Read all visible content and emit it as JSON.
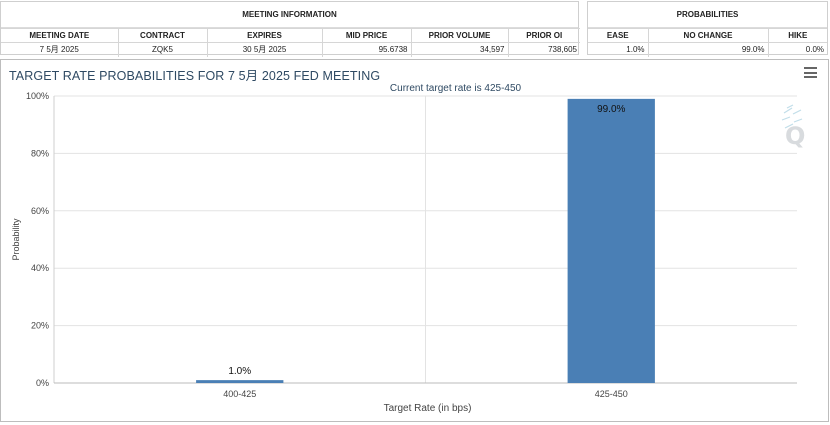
{
  "meeting_info": {
    "title": "MEETING INFORMATION",
    "headers": [
      "MEETING DATE",
      "CONTRACT",
      "EXPIRES",
      "MID PRICE",
      "PRIOR VOLUME",
      "PRIOR OI"
    ],
    "row": [
      "7 5月 2025",
      "ZQK5",
      "30 5月 2025",
      "95.6738",
      "34,597",
      "738,605"
    ]
  },
  "probabilities": {
    "title": "PROBABILITIES",
    "headers": [
      "EASE",
      "NO CHANGE",
      "HIKE"
    ],
    "row": [
      "1.0%",
      "99.0%",
      "0.0%"
    ]
  },
  "chart_panel": {
    "title": "TARGET RATE PROBABILITIES FOR 7 5月 2025 FED MEETING",
    "menu_icon": "hamburger-menu-icon",
    "watermark_icon": "q-logo-watermark"
  },
  "chart_data": {
    "type": "bar",
    "title": "TARGET RATE PROBABILITIES FOR 7 5月 2025 FED MEETING",
    "subtitle": "Current target rate is 425-450",
    "categories": [
      "400-425",
      "425-450"
    ],
    "values": [
      1.0,
      99.0
    ],
    "data_labels": [
      "1.0%",
      "99.0%"
    ],
    "xlabel": "Target Rate (in bps)",
    "ylabel": "Probability",
    "ylim": [
      0,
      100
    ],
    "yticks": [
      0,
      20,
      40,
      60,
      80,
      100
    ],
    "ytick_labels": [
      "0%",
      "20%",
      "40%",
      "60%",
      "80%",
      "100%"
    ],
    "grid": true,
    "bar_color": "#4a7fb5"
  }
}
